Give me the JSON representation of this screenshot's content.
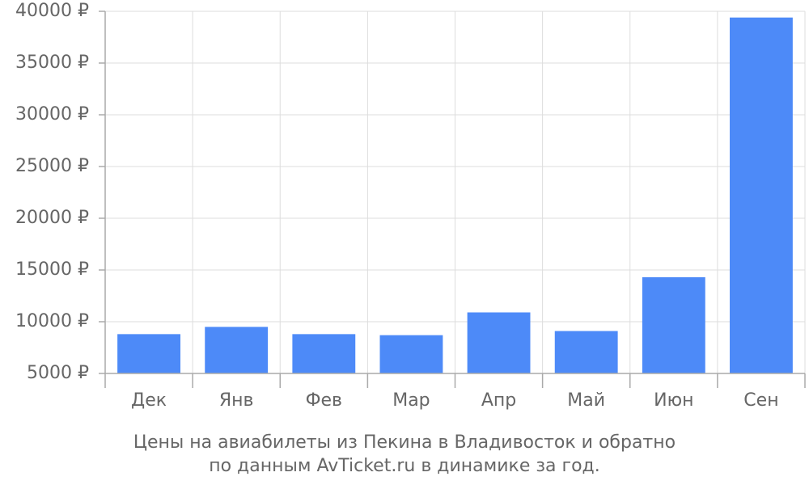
{
  "chart_data": {
    "type": "bar",
    "title_lines": [
      "Цены на авиабилеты из Пекина в Владивосток и обратно",
      "по данным AvTicket.ru в динамике за год."
    ],
    "categories": [
      "Дек",
      "Янв",
      "Фев",
      "Мар",
      "Апр",
      "Май",
      "Июн",
      "Сен"
    ],
    "values": [
      8800,
      9500,
      8800,
      8700,
      10900,
      9100,
      14300,
      39400
    ],
    "color": "#4d8af8",
    "ylim": [
      5000,
      40000
    ],
    "yticks": [
      {
        "value": 5000,
        "label": "5000 ₽"
      },
      {
        "value": 10000,
        "label": "10000 ₽"
      },
      {
        "value": 15000,
        "label": "15000 ₽"
      },
      {
        "value": 20000,
        "label": "20000 ₽"
      },
      {
        "value": 25000,
        "label": "25000 ₽"
      },
      {
        "value": 30000,
        "label": "30000 ₽"
      },
      {
        "value": 35000,
        "label": "35000 ₽"
      },
      {
        "value": 40000,
        "label": "40000 ₽"
      }
    ],
    "grid": true
  }
}
